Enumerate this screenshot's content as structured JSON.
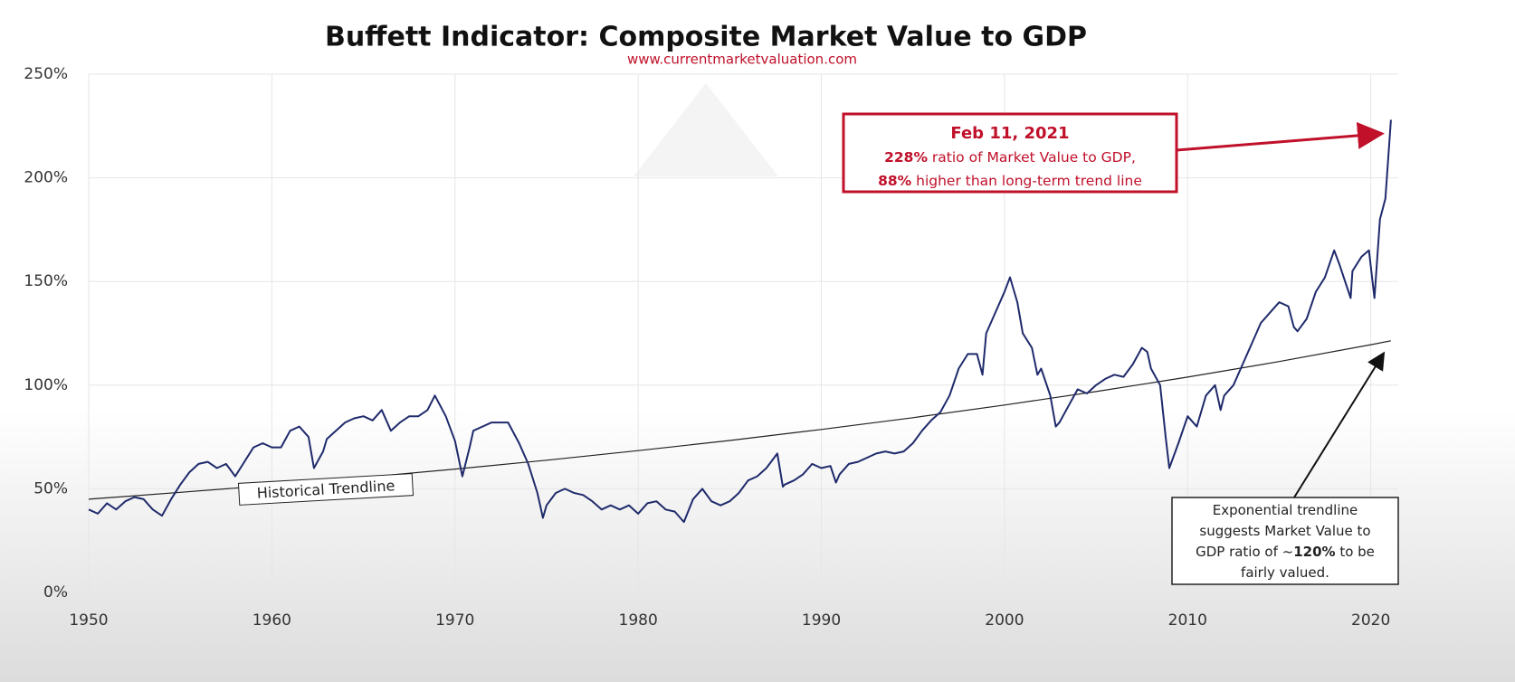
{
  "chart_data": {
    "type": "line",
    "title": "Buffett Indicator: Composite Market Value to GDP",
    "subtitle": "www.currentmarketvaluation.com",
    "xlim": [
      1950,
      2021.5
    ],
    "xticks": [
      1950,
      1960,
      1970,
      1980,
      1990,
      2000,
      2010,
      2020
    ],
    "ylim": [
      0,
      250
    ],
    "yticks": [
      {
        "value": 0,
        "label": "0%"
      },
      {
        "value": 50,
        "label": "50%"
      },
      {
        "value": 100,
        "label": "100%"
      },
      {
        "value": 150,
        "label": "150%"
      },
      {
        "value": 200,
        "label": "200%"
      },
      {
        "value": 250,
        "label": "250%"
      }
    ],
    "grid": true,
    "series": [
      {
        "color": "#1f2a6b",
        "x": [
          1950,
          1950.5,
          1951,
          1951.5,
          1952,
          1952.5,
          1953,
          1953.5,
          1954,
          1954.5,
          1955,
          1955.5,
          1956,
          1956.5,
          1957,
          1957.5,
          1958,
          1958.5,
          1959,
          1959.5,
          1960,
          1960.5,
          1961,
          1961.5,
          1962,
          1962.3,
          1962.8,
          1963,
          1963.5,
          1964,
          1964.5,
          1965,
          1965.5,
          1966,
          1966.5,
          1967,
          1967.5,
          1968,
          1968.5,
          1968.9,
          1969.5,
          1970,
          1970.4,
          1970.8,
          1971,
          1971.5,
          1972,
          1972.5,
          1972.9,
          1973.5,
          1974,
          1974.5,
          1974.8,
          1975,
          1975.5,
          1976,
          1976.5,
          1977,
          1977.5,
          1978,
          1978.5,
          1979,
          1979.5,
          1980,
          1980.5,
          1981,
          1981.5,
          1982,
          1982.5,
          1983,
          1983.5,
          1984,
          1984.5,
          1985,
          1985.5,
          1986,
          1986.5,
          1987,
          1987.6,
          1987.9,
          1988,
          1988.5,
          1989,
          1989.5,
          1990,
          1990.5,
          1990.8,
          1991,
          1991.5,
          1992,
          1992.5,
          1993,
          1993.5,
          1994,
          1994.5,
          1995,
          1995.5,
          1996,
          1996.5,
          1997,
          1997.5,
          1998,
          1998.5,
          1998.8,
          1999,
          1999.5,
          2000,
          2000.3,
          2000.7,
          2001,
          2001.5,
          2001.8,
          2002,
          2002.5,
          2002.8,
          2003,
          2003.5,
          2004,
          2004.5,
          2005,
          2005.5,
          2006,
          2006.5,
          2007,
          2007.5,
          2007.8,
          2008,
          2008.5,
          2008.8,
          2009,
          2009.5,
          2010,
          2010.5,
          2011,
          2011.5,
          2011.8,
          2012,
          2012.5,
          2013,
          2013.5,
          2014,
          2014.5,
          2015,
          2015.5,
          2015.8,
          2016,
          2016.5,
          2017,
          2017.5,
          2018,
          2018.3,
          2018.9,
          2019,
          2019.5,
          2019.9,
          2020.2,
          2020.5,
          2020.8,
          2021.1
        ],
        "values": [
          40,
          38,
          43,
          40,
          44,
          46,
          45,
          40,
          37,
          45,
          52,
          58,
          62,
          63,
          60,
          62,
          56,
          63,
          70,
          72,
          70,
          70,
          78,
          80,
          75,
          60,
          68,
          74,
          78,
          82,
          84,
          85,
          83,
          88,
          78,
          82,
          85,
          85,
          88,
          95,
          85,
          73,
          56,
          70,
          78,
          80,
          82,
          82,
          82,
          72,
          62,
          48,
          36,
          42,
          48,
          50,
          48,
          47,
          44,
          40,
          42,
          40,
          42,
          38,
          43,
          44,
          40,
          39,
          34,
          45,
          50,
          44,
          42,
          44,
          48,
          54,
          56,
          60,
          67,
          51,
          52,
          54,
          57,
          62,
          60,
          61,
          53,
          57,
          62,
          63,
          65,
          67,
          68,
          67,
          68,
          72,
          78,
          83,
          87,
          95,
          108,
          115,
          115,
          105,
          125,
          135,
          145,
          152,
          140,
          125,
          118,
          105,
          108,
          95,
          80,
          82,
          90,
          98,
          96,
          100,
          103,
          105,
          104,
          110,
          118,
          116,
          108,
          100,
          75,
          60,
          72,
          85,
          80,
          95,
          100,
          88,
          95,
          100,
          110,
          120,
          130,
          135,
          140,
          138,
          128,
          126,
          132,
          145,
          152,
          165,
          158,
          142,
          155,
          162,
          165,
          142,
          180,
          190,
          228
        ]
      },
      {
        "color": "#222222",
        "x": [
          1950,
          1955,
          1960,
          1965,
          1970,
          1975,
          1980,
          1985,
          1990,
          1995,
          2000,
          2005,
          2010,
          2015,
          2020,
          2021.1
        ],
        "values": [
          45,
          48.3,
          51.7,
          55.5,
          59.5,
          63.8,
          68.4,
          73.3,
          78.6,
          84.3,
          90.4,
          96.9,
          103.9,
          111.4,
          119.5,
          121.4
        ]
      }
    ],
    "trend_label": "Historical Trendline",
    "annotations": [
      {
        "lines": [
          [
            {
              "text": "Feb 11, 2021",
              "bold": true
            }
          ],
          [
            {
              "text": "228%",
              "bold": true
            },
            {
              "text": " ratio of Market Value to GDP,"
            }
          ],
          [
            {
              "text": "88%",
              "bold": true
            },
            {
              "text": " higher than long-term trend line"
            }
          ]
        ]
      },
      {
        "lines": [
          [
            {
              "text": "Exponential trendline"
            }
          ],
          [
            {
              "text": "suggests Market Value to"
            }
          ],
          [
            {
              "text": "GDP ratio of ~"
            },
            {
              "text": "120%",
              "bold": true
            },
            {
              "text": " to be"
            }
          ],
          [
            {
              "text": "fairly valued."
            }
          ]
        ]
      }
    ]
  }
}
